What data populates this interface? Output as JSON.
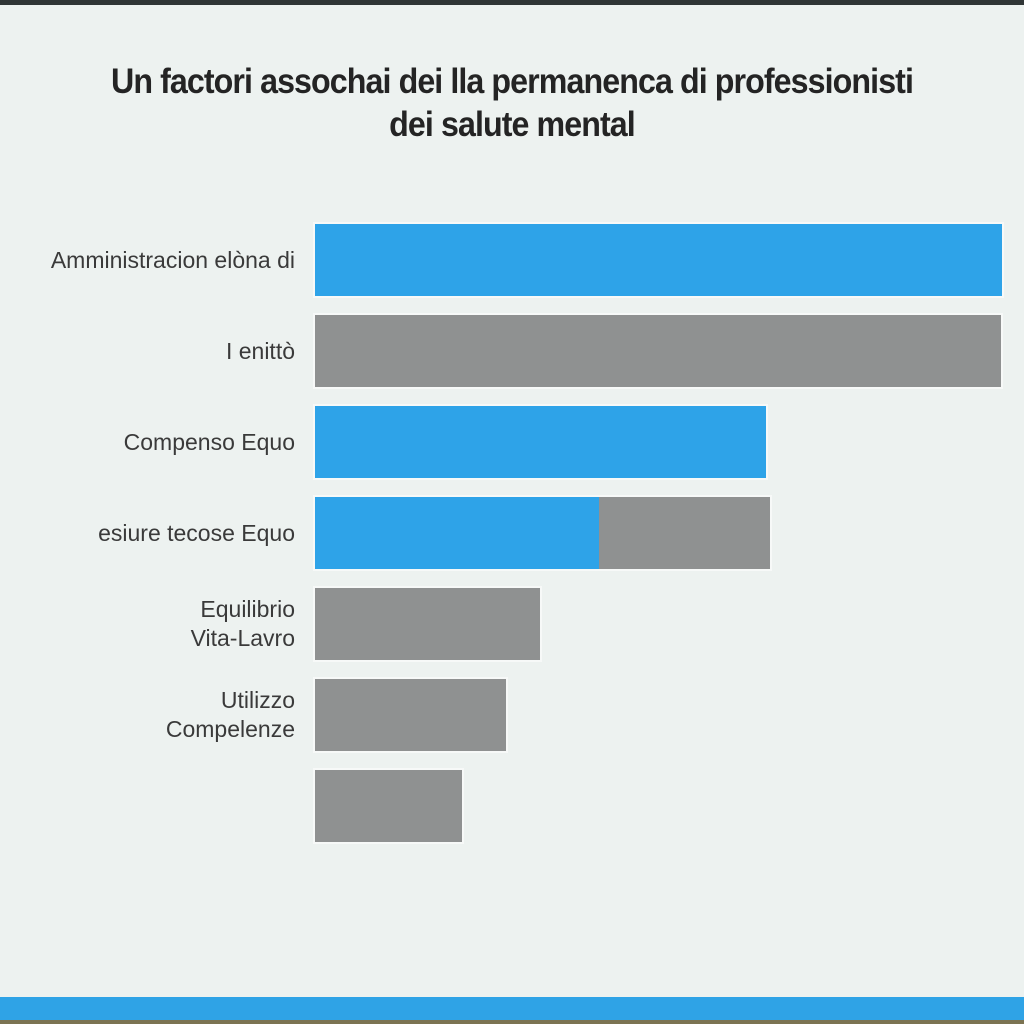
{
  "page": {
    "background_color": "#EDF2F0",
    "top_accent_color": "#303636",
    "bottom_accent_color": "#2FA3E6",
    "bottom_edge_color": "#7B7352"
  },
  "title": {
    "line1": "Un factori assochai dei lla permanenca di professionisti",
    "line2": "dei salute mental"
  },
  "chart_data": {
    "type": "bar",
    "orientation": "horizontal",
    "title": "Un factori assochai dei lla permanenca di professionisti dei salute mental",
    "xlabel": "",
    "ylabel": "",
    "axis_visible": false,
    "grid": false,
    "legend": "none",
    "value_scale": [
      0,
      100
    ],
    "colors": {
      "primary_blue": "#2EA3E8",
      "secondary_gray": "#8F9191"
    },
    "rows": [
      {
        "label_lines": [
          "Amministracion elòna di"
        ],
        "segments": [
          {
            "color": "#2EA3E8",
            "value": 100
          }
        ]
      },
      {
        "label_lines": [
          "I enittò"
        ],
        "segments": [
          {
            "color": "#8F9191",
            "value": 99.8
          }
        ]
      },
      {
        "label_lines": [
          "Compenso Equo"
        ],
        "segments": [
          {
            "color": "#2EA3E8",
            "value": 65.6
          }
        ]
      },
      {
        "label_lines": [
          "esiure tecose Equo"
        ],
        "segments": [
          {
            "color": "#2EA3E8",
            "value": 41.3
          },
          {
            "color": "#8F9191",
            "value": 25.0
          }
        ]
      },
      {
        "label_lines": [
          "Equilibrio",
          "Vita-Lavro"
        ],
        "segments": [
          {
            "color": "#8F9191",
            "value": 32.8
          }
        ]
      },
      {
        "label_lines": [
          "Utilizzo",
          "Compelenze"
        ],
        "segments": [
          {
            "color": "#8F9191",
            "value": 27.8
          }
        ]
      },
      {
        "label_lines": [],
        "segments": [
          {
            "color": "#8F9191",
            "value": 21.4
          }
        ]
      }
    ]
  }
}
